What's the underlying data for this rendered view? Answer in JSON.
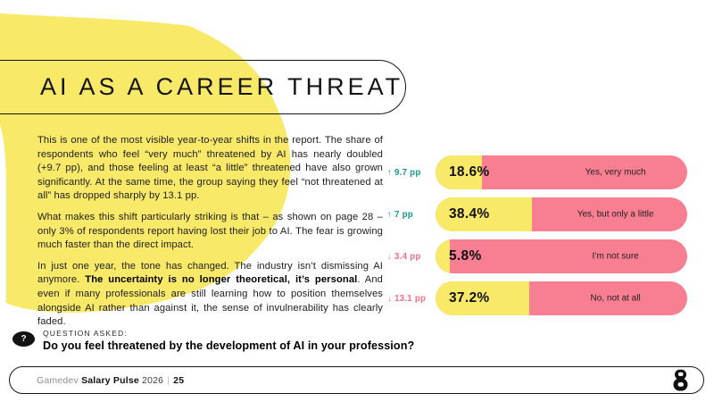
{
  "title": "AI AS A CAREER THREAT",
  "body": {
    "p1": "This is one of the most visible year-to-year shifts in the report. The share of respondents who feel “very much” threatened by AI has nearly doubled (+9.7 pp), and those feeling at least “a little” threatened have also grown significantly. At the same time, the group saying they feel “not threatened at all” has dropped sharply by 13.1 pp.",
    "p2": "What makes this shift particularly striking is that – as shown on page 28 – only 3% of respondents report having lost their job to AI. The fear is growing much faster than the direct impact.",
    "p3_pre": "In just one year, the tone has changed. The industry isn’t dismissing AI anymore. ",
    "p3_bold": "The uncertainty is no longer theoretical, it’s personal",
    "p3_post": ". And even if many professionals are still learning how to position themselves alongside AI rather than against it, the sense of invulnerability has clearly faded."
  },
  "question": {
    "icon_glyph": "?",
    "label": "QUESTION ASKED:",
    "text": "Do you feel threatened by the development of AI in your profession?"
  },
  "chart_data": {
    "type": "bar",
    "orientation": "horizontal",
    "xlim": [
      0,
      100
    ],
    "unit": "%",
    "categories": [
      "Yes, very much",
      "Yes, but only a little",
      "I’m not sure",
      "No, not at all"
    ],
    "values": [
      18.6,
      38.4,
      5.8,
      37.2
    ],
    "rows": [
      {
        "category": "Yes, very much",
        "value": 18.6,
        "value_label": "18.6%",
        "delta_arrow": "↑",
        "delta": "9.7 pp",
        "delta_direction": "up"
      },
      {
        "category": "Yes, but only a little",
        "value": 38.4,
        "value_label": "38.4%",
        "delta_arrow": "↑",
        "delta": "7 pp",
        "delta_direction": "up"
      },
      {
        "category": "I’m not sure",
        "value": 5.8,
        "value_label": "5.8%",
        "delta_arrow": "↓",
        "delta": "3.4 pp",
        "delta_direction": "down"
      },
      {
        "category": "No, not at all",
        "value": 37.2,
        "value_label": "37.2%",
        "delta_arrow": "↓",
        "delta": "13.1 pp",
        "delta_direction": "down"
      }
    ],
    "bar_fill_color": "#F8E969",
    "bar_track_color": "#F87E91",
    "delta_up_color": "#169C8C",
    "delta_down_color": "#F76F85",
    "legend": "off",
    "grid": "off"
  },
  "footer": {
    "brand_regular": "Gamedev",
    "brand_bold": "Salary Pulse",
    "year": "2026",
    "separator": "|",
    "page_number": "25",
    "logo": "g8-mark"
  },
  "colors": {
    "background": "#FFFFFF",
    "blob_yellow": "#F8E969",
    "bar_pink": "#F87E91",
    "delta_up_teal": "#169C8C",
    "delta_down_pink": "#F76F85",
    "ink": "#141414"
  }
}
